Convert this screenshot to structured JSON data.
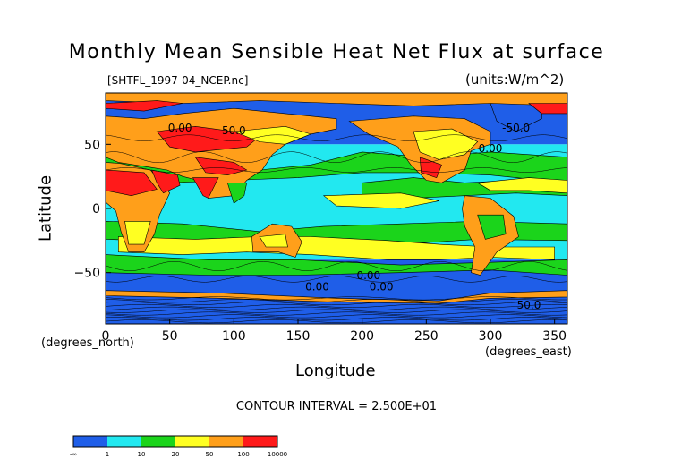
{
  "chart_data": {
    "type": "heatmap",
    "title": "Monthly Mean Sensible Heat Net Flux at surface",
    "file_label": "[SHTFL_1997-04_NCEP.nc]",
    "units_label": "(units:W/m^2)",
    "xlabel": "Longitude",
    "ylabel": "Latitude",
    "x_unit_label_left": "(degrees_north)",
    "x_unit_label_right": "(degrees_east)",
    "xlim": [
      0,
      360
    ],
    "ylim": [
      -90,
      90
    ],
    "x_ticks": [
      0,
      50,
      100,
      150,
      200,
      250,
      300,
      350
    ],
    "y_ticks": [
      50,
      0,
      -50
    ],
    "contour_interval": "CONTOUR INTERVAL = 2.500E+01",
    "contour_labels": [
      "0.00",
      "50.0",
      "0.00",
      "0.00",
      "0.00",
      "0.00",
      "50.0",
      "-50.0"
    ],
    "colorbar": {
      "boundaries": [
        "-∞",
        "1",
        "10",
        "20",
        "50",
        "100",
        "10000"
      ],
      "colors": [
        "#1f5ee8",
        "#22e8f0",
        "#1bd41b",
        "#ffff22",
        "#ff9f1a",
        "#ff1a1a"
      ]
    },
    "colors": {
      "ocean_low": "#1f5ee8",
      "ocean_mid": "#22e8f0",
      "green": "#1bd41b",
      "yellow": "#ffff22",
      "orange": "#ff9f1a",
      "red": "#ff1a1a",
      "contour": "#000000"
    }
  }
}
